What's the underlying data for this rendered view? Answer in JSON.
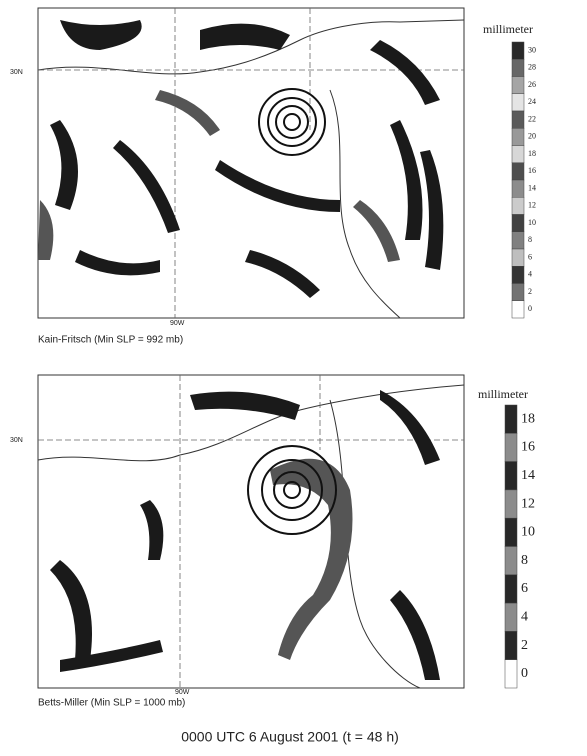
{
  "panels": [
    {
      "caption": "Kain-Fritsch (Min SLP = 992 mb)",
      "lat_label": "30N",
      "lon_label": "90W",
      "colorbar": {
        "title": "millimeter",
        "ticks": [
          30,
          28,
          26,
          24,
          22,
          20,
          18,
          16,
          14,
          12,
          10,
          8,
          6,
          4,
          2,
          0
        ]
      }
    },
    {
      "caption": "Betts-Miller (Min SLP = 1000 mb)",
      "lat_label": "30N",
      "lon_label": "90W",
      "colorbar": {
        "title": "millimeter",
        "ticks": [
          18,
          16,
          14,
          12,
          10,
          8,
          6,
          4,
          2,
          0
        ]
      }
    }
  ],
  "figure_caption": "0000 UTC 6 August 2001 (t = 48 h)"
}
